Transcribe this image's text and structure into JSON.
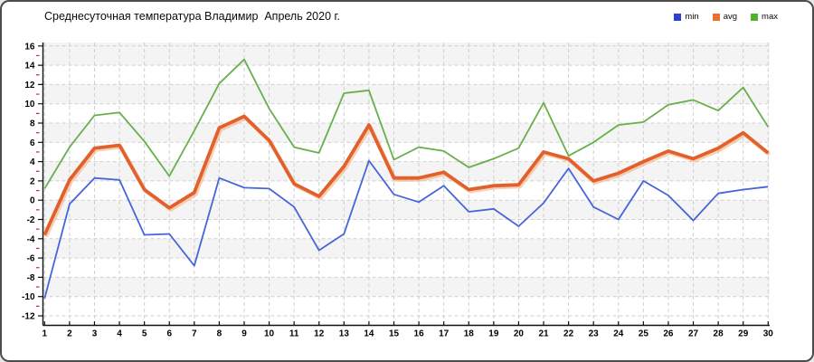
{
  "window": {
    "background": "#ffffff",
    "border_color": "#4c4c4c"
  },
  "chart_data": {
    "type": "line",
    "title": "Среднесуточная температура Владимир  Апрель 2020 г.",
    "xlabel": "",
    "ylabel": "",
    "categories": [
      1,
      2,
      3,
      4,
      5,
      6,
      7,
      8,
      9,
      10,
      11,
      12,
      13,
      14,
      15,
      16,
      17,
      18,
      19,
      20,
      21,
      22,
      23,
      24,
      25,
      26,
      27,
      28,
      29,
      30
    ],
    "y_ticks": [
      16,
      14,
      12,
      10,
      8,
      6,
      4,
      2,
      0,
      -2,
      -4,
      -6,
      -8,
      -10,
      -12
    ],
    "ylim": [
      -12,
      16
    ],
    "grid": "dashed-both-axes",
    "legend_position": "top-right",
    "series": [
      {
        "name": "min",
        "color": "#4565d9",
        "swatch": "#2b40d0",
        "values": [
          -10.2,
          -0.4,
          2.3,
          2.1,
          -3.6,
          -3.5,
          -6.8,
          2.3,
          1.3,
          1.2,
          -0.7,
          -5.2,
          -3.5,
          4.1,
          0.6,
          -0.2,
          1.5,
          -1.2,
          -0.9,
          -2.7,
          -0.3,
          3.3,
          -0.7,
          -2.0,
          2.0,
          0.5,
          -2.1,
          0.7,
          1.1,
          1.4
        ]
      },
      {
        "name": "avg",
        "color": "#e2602b",
        "swatch": "#ed6f2d",
        "values": [
          -3.6,
          2.1,
          5.4,
          5.7,
          1.1,
          -0.8,
          0.8,
          7.5,
          8.7,
          6.2,
          1.7,
          0.4,
          3.5,
          7.8,
          2.3,
          2.3,
          2.9,
          1.1,
          1.5,
          1.6,
          5.0,
          4.3,
          2.0,
          2.8,
          4.0,
          5.1,
          4.3,
          5.4,
          7.0,
          4.9
        ]
      },
      {
        "name": "max",
        "color": "#67b04b",
        "swatch": "#4cb32d",
        "values": [
          1.2,
          5.5,
          8.8,
          9.1,
          6.1,
          2.5,
          7.2,
          12.1,
          14.6,
          9.5,
          5.5,
          4.9,
          11.1,
          11.4,
          4.2,
          5.5,
          5.1,
          3.4,
          4.3,
          5.4,
          10.1,
          4.6,
          6.0,
          7.8,
          8.1,
          9.9,
          10.4,
          9.3,
          11.7,
          7.6
        ]
      }
    ],
    "style": {
      "plot_band": "#f4f4f4",
      "plot_band_alt": "#ffffff",
      "grid_color": "#cfcfcf",
      "axis_color": "#111111",
      "major_tick_color": "#111111",
      "minor_tick_color": "#cc2222"
    }
  }
}
